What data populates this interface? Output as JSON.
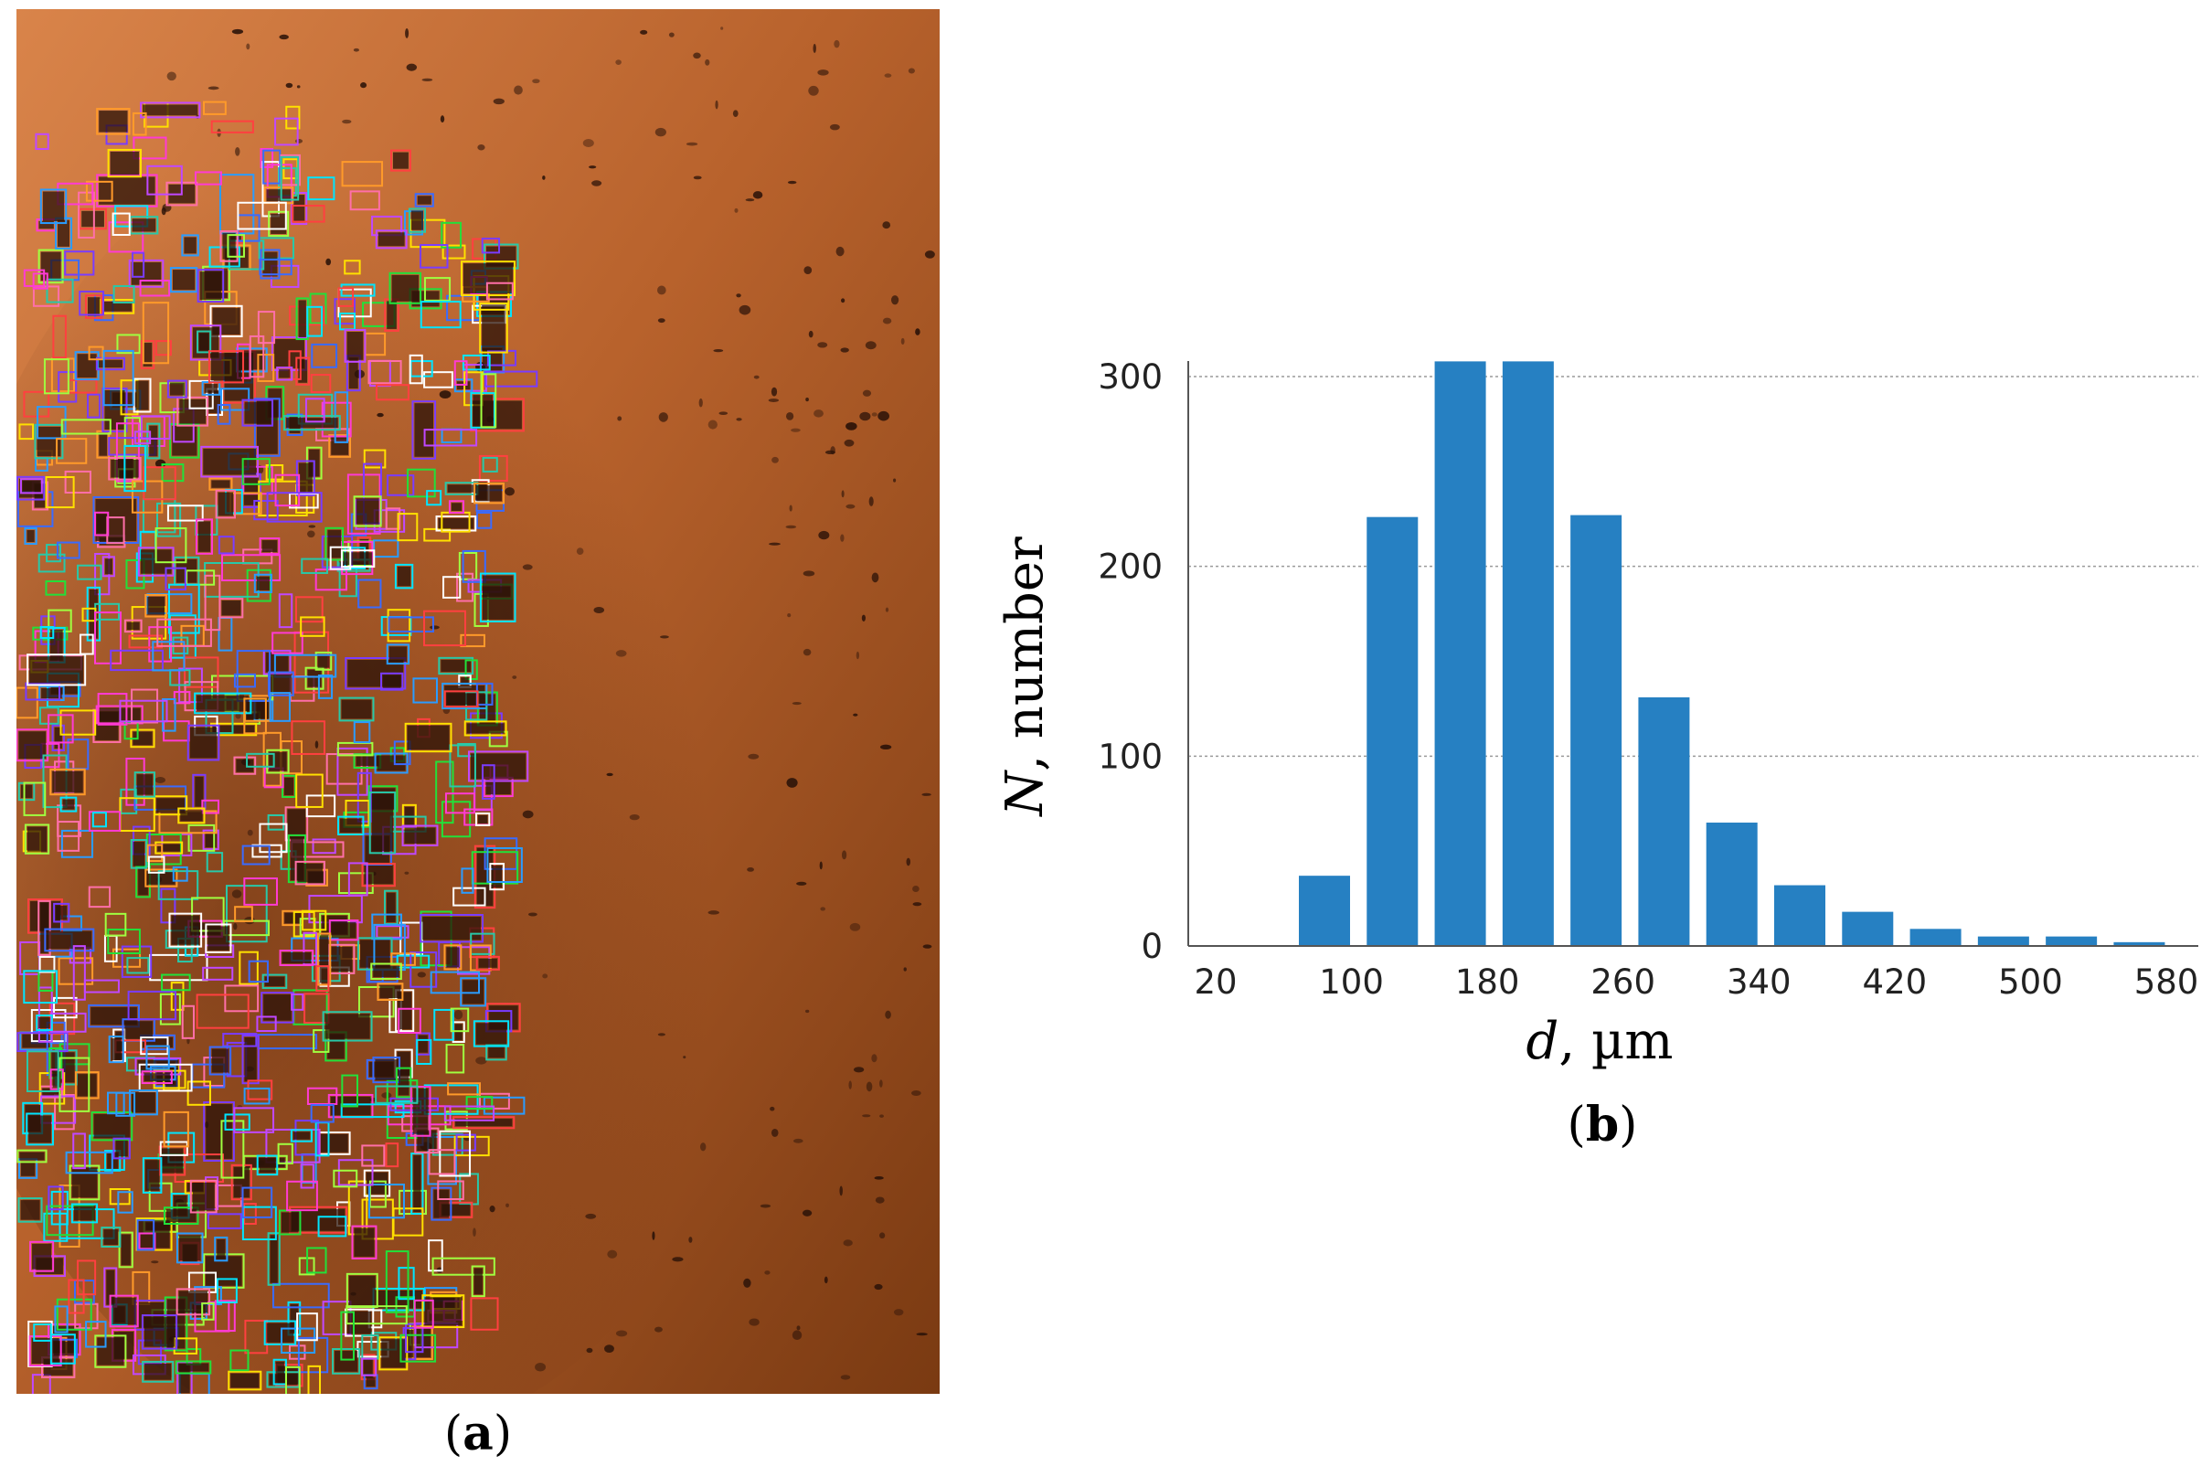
{
  "panel_a": {
    "caption_letter": "a",
    "description_icon": "particle-detection-micrograph",
    "colors": {
      "background_dark": "#7a3a12",
      "background_light": "#d9844a",
      "particle": "#2a1208"
    }
  },
  "panel_b": {
    "caption_letter": "b"
  },
  "chart_data": {
    "type": "bar",
    "title": "",
    "ylabel_italic": "N",
    "ylabel_rest": ", number",
    "xlabel_italic": "d",
    "xlabel_rest": ", µm",
    "x_ticks": [
      "20",
      "100",
      "180",
      "260",
      "340",
      "420",
      "500",
      "580"
    ],
    "y_ticks": [
      "0",
      "100",
      "200",
      "300"
    ],
    "bin_centers": [
      80,
      140,
      160,
      180,
      220,
      260,
      300,
      340,
      380,
      420,
      460,
      500,
      540
    ],
    "x": [
      60,
      100,
      140,
      180,
      220,
      260,
      300,
      340,
      380,
      420,
      460,
      500,
      540
    ],
    "values": [
      37,
      226,
      308,
      308,
      227,
      131,
      65,
      32,
      18,
      9,
      5,
      5,
      2
    ],
    "xlim": [
      20,
      600
    ],
    "ylim": [
      0,
      300
    ],
    "grid": "horizontal",
    "bar_color": "#2680c2"
  }
}
